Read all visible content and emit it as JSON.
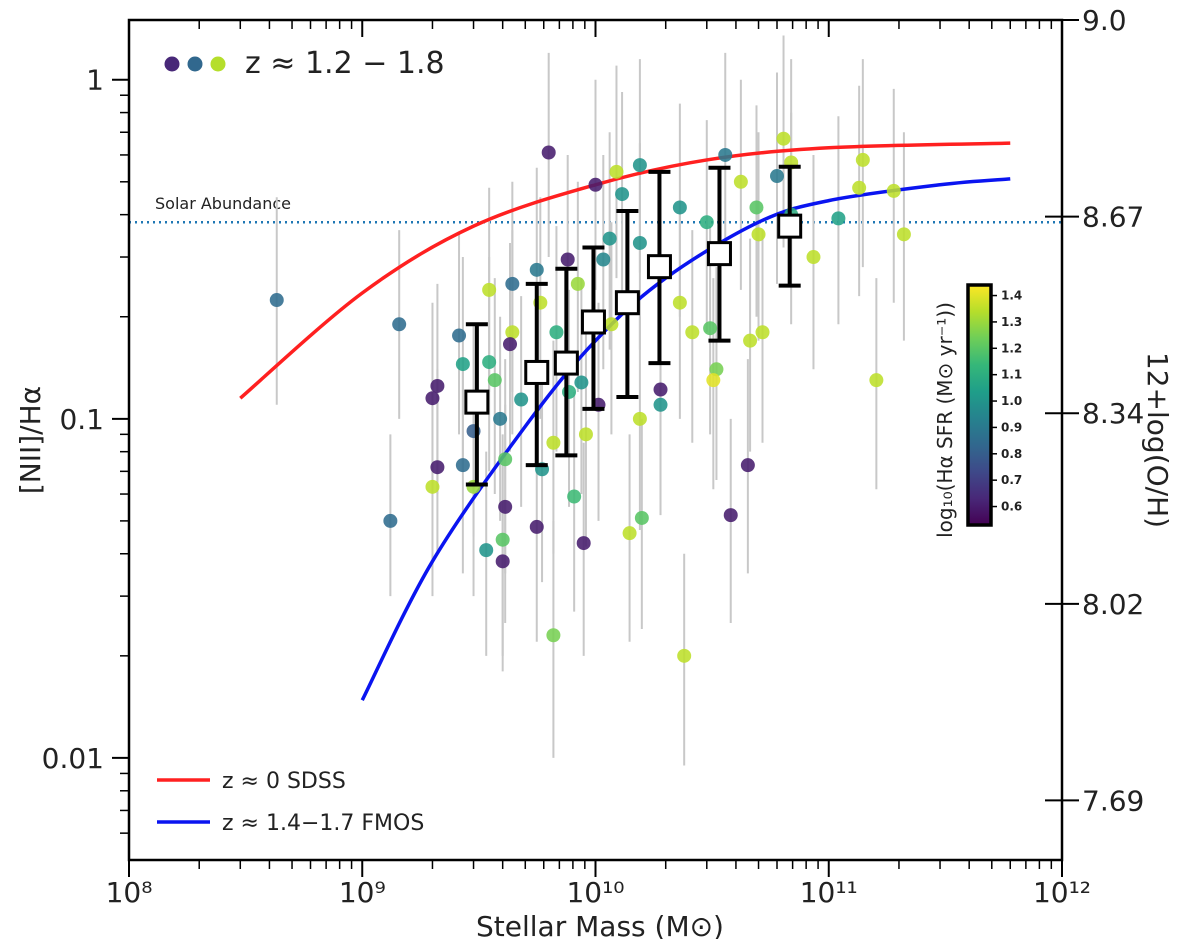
{
  "chart_data": {
    "type": "scatter",
    "xlabel": "Stellar Mass (M⊙)",
    "ylabel": "[NII]/Hα",
    "y2label": "12+log(O/H)",
    "log_x": true,
    "log_y": true,
    "xlim": [
      100000000.0,
      1000000000000.0
    ],
    "ylim": [
      0.005,
      1.5
    ],
    "y2lim": [
      7.59,
      9.0
    ],
    "xticks": [
      {
        "value": 100000000.0,
        "label": "10⁸"
      },
      {
        "value": 1000000000.0,
        "label": "10⁹"
      },
      {
        "value": 10000000000.0,
        "label": "10¹⁰"
      },
      {
        "value": 100000000000.0,
        "label": "10¹¹"
      },
      {
        "value": 1000000000000.0,
        "label": "10¹²"
      }
    ],
    "xminorticks": [
      200000000.0,
      300000000.0,
      400000000.0,
      500000000.0,
      600000000.0,
      700000000.0,
      800000000.0,
      900000000.0,
      2000000000.0,
      3000000000.0,
      4000000000.0,
      5000000000.0,
      6000000000.0,
      7000000000.0,
      8000000000.0,
      9000000000.0,
      20000000000.0,
      30000000000.0,
      40000000000.0,
      50000000000.0,
      60000000000.0,
      70000000000.0,
      80000000000.0,
      90000000000.0,
      200000000000.0,
      300000000000.0,
      400000000000.0,
      500000000000.0,
      600000000000.0,
      700000000000.0,
      800000000000.0,
      900000000000.0
    ],
    "yticks": [
      0.01,
      0.1,
      1
    ],
    "yminorticks": [
      0.006,
      0.007,
      0.008,
      0.009,
      0.02,
      0.03,
      0.04,
      0.05,
      0.06,
      0.07,
      0.08,
      0.09,
      0.2,
      0.3,
      0.4,
      0.5,
      0.6,
      0.7,
      0.8,
      0.9
    ],
    "y2ticks": [
      {
        "value": 9.0,
        "label": "9.0"
      },
      8.67,
      8.34,
      8.02,
      7.69
    ],
    "annotation": "z ≈ 1.2 − 1.8",
    "annotation_colors": [
      "#482878",
      "#31688e",
      "#b5de2b"
    ],
    "legend": "lower left",
    "reference_line": {
      "label": "Solar Abundance",
      "value": 0.38,
      "color": "#1f77b4"
    },
    "series": [
      {
        "name": "z ≈ 0 SDSS",
        "color": "#ff2020",
        "x": [
          300000000.0,
          1000000000.0,
          3000000000.0,
          10000000000.0,
          30000000000.0,
          100000000000.0,
          600000000000.0
        ],
        "values": [
          0.115,
          0.235,
          0.37,
          0.49,
          0.58,
          0.63,
          0.65
        ]
      },
      {
        "name": "z ≈ 1.4−1.7 FMOS",
        "color": "#0a14f0",
        "x": [
          1000000000.0,
          2000000000.0,
          5000000000.0,
          10000000000.0,
          20000000000.0,
          50000000000.0,
          100000000000.0,
          300000000000.0,
          600000000000.0
        ],
        "values": [
          0.0148,
          0.038,
          0.095,
          0.17,
          0.26,
          0.38,
          0.44,
          0.49,
          0.51
        ]
      }
    ],
    "binned": {
      "x": [
        3100000000.0,
        5600000000.0,
        7500000000.0,
        9800000000.0,
        13700000000.0,
        18800000000.0,
        34000000000.0,
        68000000000.0
      ],
      "values": [
        0.112,
        0.137,
        0.146,
        0.193,
        0.22,
        0.281,
        0.307,
        0.37
      ],
      "lower": [
        0.064,
        0.073,
        0.078,
        0.107,
        0.116,
        0.146,
        0.17,
        0.247
      ],
      "upper": [
        0.19,
        0.25,
        0.277,
        0.32,
        0.41,
        0.535,
        0.55,
        0.554
      ]
    },
    "points": {
      "x": [
        430000000.0,
        1440000000.0,
        1320000000.0,
        2100000000.0,
        2000000000.0,
        2100000000.0,
        2000000000.0,
        2600000000.0,
        2700000000.0,
        2700000000.0,
        3000000000.0,
        3000000000.0,
        3500000000.0,
        3500000000.0,
        3700000000.0,
        3900000000.0,
        4000000000.0,
        3400000000.0,
        4100000000.0,
        4100000000.0,
        4000000000.0,
        4400000000.0,
        4400000000.0,
        4300000000.0,
        4800000000.0,
        5600000000.0,
        5600000000.0,
        5800000000.0,
        5900000000.0,
        6300000000.0,
        6600000000.0,
        6800000000.0,
        6600000000.0,
        7600000000.0,
        7700000000.0,
        8100000000.0,
        8400000000.0,
        8900000000.0,
        8700000000.0,
        9100000000.0,
        10000000000.0,
        10300000000.0,
        10800000000.0,
        11500000000.0,
        11700000000.0,
        12300000000.0,
        13000000000.0,
        14000000000.0,
        15500000000.0,
        15800000000.0,
        15500000000.0,
        15500000000.0,
        19000000000.0,
        19000000000.0,
        23000000000.0,
        23000000000.0,
        24000000000.0,
        26000000000.0,
        30000000000.0,
        31000000000.0,
        33000000000.0,
        32000000000.0,
        36000000000.0,
        38000000000.0,
        42000000000.0,
        45000000000.0,
        46000000000.0,
        49000000000.0,
        50000000000.0,
        52000000000.0,
        64000000000.0,
        60000000000.0,
        69000000000.0,
        69000000000.0,
        86000000000.0,
        110000000000.0,
        140000000000.0,
        135000000000.0,
        160000000000.0,
        190000000000.0,
        210000000000.0
      ],
      "values": [
        0.224,
        0.19,
        0.05,
        0.125,
        0.115,
        0.072,
        0.063,
        0.176,
        0.145,
        0.073,
        0.063,
        0.092,
        0.24,
        0.147,
        0.13,
        0.1,
        0.044,
        0.041,
        0.076,
        0.055,
        0.038,
        0.25,
        0.18,
        0.166,
        0.114,
        0.275,
        0.048,
        0.22,
        0.071,
        0.61,
        0.023,
        0.18,
        0.085,
        0.295,
        0.12,
        0.059,
        0.25,
        0.043,
        0.128,
        0.09,
        0.49,
        0.11,
        0.295,
        0.34,
        0.19,
        0.535,
        0.46,
        0.046,
        0.1,
        0.051,
        0.56,
        0.33,
        0.122,
        0.11,
        0.42,
        0.22,
        0.02,
        0.18,
        0.38,
        0.185,
        0.14,
        0.13,
        0.6,
        0.052,
        0.5,
        0.073,
        0.17,
        0.42,
        0.35,
        0.18,
        0.67,
        0.52,
        0.57,
        0.4,
        0.3,
        0.39,
        0.58,
        0.48,
        0.13,
        0.47,
        0.35
      ],
      "color_values": [
        0.85,
        0.85,
        0.85,
        0.6,
        0.6,
        0.6,
        1.35,
        0.85,
        1.05,
        0.85,
        1.3,
        0.8,
        1.35,
        1.1,
        1.2,
        0.9,
        1.2,
        1.0,
        1.2,
        0.6,
        0.6,
        0.85,
        1.35,
        0.6,
        1.0,
        0.9,
        0.6,
        1.35,
        1.0,
        0.6,
        1.25,
        1.1,
        1.35,
        0.6,
        1.1,
        1.15,
        1.3,
        0.6,
        1.0,
        1.35,
        0.6,
        0.6,
        0.95,
        1.0,
        1.35,
        1.35,
        1.0,
        1.35,
        1.35,
        1.2,
        1.0,
        1.0,
        0.6,
        1.0,
        1.0,
        1.35,
        1.35,
        1.35,
        1.1,
        1.2,
        1.25,
        1.4,
        0.9,
        0.6,
        1.35,
        0.6,
        1.35,
        1.2,
        1.35,
        1.35,
        1.35,
        0.9,
        1.35,
        1.1,
        1.35,
        1.05,
        1.35,
        1.35,
        1.35,
        1.35,
        1.35
      ],
      "lower": [
        0.11,
        0.1,
        0.03,
        0.06,
        0.06,
        0.04,
        0.03,
        0.09,
        0.07,
        0.035,
        0.03,
        0.045,
        0.12,
        0.07,
        0.06,
        0.05,
        0.02,
        0.02,
        0.035,
        0.025,
        0.018,
        0.12,
        0.09,
        0.08,
        0.055,
        0.13,
        0.022,
        0.1,
        0.033,
        0.3,
        0.01,
        0.08,
        0.04,
        0.14,
        0.055,
        0.027,
        0.12,
        0.02,
        0.06,
        0.042,
        0.24,
        0.05,
        0.14,
        0.16,
        0.09,
        0.26,
        0.22,
        0.022,
        0.047,
        0.024,
        0.27,
        0.16,
        0.058,
        0.052,
        0.2,
        0.1,
        0.0095,
        0.085,
        0.18,
        0.09,
        0.066,
        0.062,
        0.29,
        0.025,
        0.24,
        0.035,
        0.08,
        0.2,
        0.17,
        0.085,
        0.32,
        0.25,
        0.27,
        0.19,
        0.14,
        0.19,
        0.28,
        0.23,
        0.062,
        0.22,
        0.17
      ],
      "upper": [
        0.45,
        0.36,
        0.09,
        0.25,
        0.22,
        0.14,
        0.12,
        0.35,
        0.3,
        0.15,
        0.13,
        0.19,
        0.48,
        0.3,
        0.26,
        0.2,
        0.09,
        0.08,
        0.15,
        0.11,
        0.08,
        0.5,
        0.36,
        0.33,
        0.23,
        0.55,
        0.1,
        0.45,
        0.14,
        1.2,
        0.05,
        0.37,
        0.17,
        0.6,
        0.24,
        0.12,
        0.5,
        0.085,
        0.26,
        0.18,
        1.0,
        0.22,
        0.6,
        0.7,
        0.38,
        1.1,
        0.92,
        0.09,
        0.2,
        0.1,
        1.15,
        0.65,
        0.25,
        0.22,
        0.85,
        0.44,
        0.04,
        0.36,
        0.76,
        0.37,
        0.28,
        0.26,
        1.2,
        0.1,
        1.0,
        0.15,
        0.34,
        0.84,
        0.7,
        0.36,
        1.35,
        1.05,
        1.15,
        0.8,
        0.6,
        0.78,
        1.15,
        0.96,
        0.26,
        0.94,
        0.7
      ]
    },
    "colorbar": {
      "label": "log₁₀(Hα SFR (M⊙ yr⁻¹))",
      "lim": [
        0.53,
        1.44
      ],
      "ticks": [
        0.6,
        0.7,
        0.8,
        0.9,
        {
          "value": 1.0,
          "label": "1.0"
        },
        1.1,
        1.2,
        1.3,
        1.4
      ],
      "colormap": [
        "#440154",
        "#482878",
        "#3e4989",
        "#31688e",
        "#26828e",
        "#1f9e89",
        "#35b779",
        "#6ece58",
        "#b5de2b",
        "#fde725"
      ]
    }
  }
}
